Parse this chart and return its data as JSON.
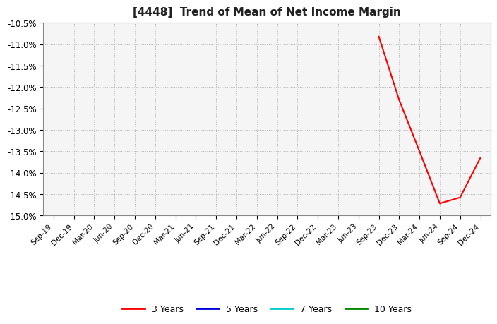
{
  "title": "[4448]  Trend of Mean of Net Income Margin",
  "x_labels": [
    "Sep-19",
    "Dec-19",
    "Mar-20",
    "Jun-20",
    "Sep-20",
    "Dec-20",
    "Mar-21",
    "Jun-21",
    "Sep-21",
    "Dec-21",
    "Mar-22",
    "Jun-22",
    "Sep-22",
    "Dec-22",
    "Mar-23",
    "Jun-23",
    "Sep-23",
    "Dec-23",
    "Mar-24",
    "Jun-24",
    "Sep-24",
    "Dec-24"
  ],
  "series_3y": {
    "name": "3 Years",
    "color": "#ff0000",
    "data_indices": [
      16,
      17,
      18,
      19,
      20,
      21
    ],
    "data_values": [
      -10.82,
      -12.3,
      -13.5,
      -14.72,
      -14.58,
      -13.65
    ]
  },
  "series_5y": {
    "name": "5 Years",
    "color": "#0000dd",
    "data_indices": [],
    "data_values": []
  },
  "series_7y": {
    "name": "7 Years",
    "color": "#00cccc",
    "data_indices": [],
    "data_values": []
  },
  "series_10y": {
    "name": "10 Years",
    "color": "#008800",
    "data_indices": [],
    "data_values": []
  },
  "ylim": [
    -15.0,
    -10.5
  ],
  "yticks": [
    -15.0,
    -14.5,
    -14.0,
    -13.5,
    -13.0,
    -12.5,
    -12.0,
    -11.5,
    -11.0,
    -10.5
  ],
  "background_color": "#ffffff",
  "plot_bg_color": "#f5f5f5",
  "grid_color": "#aaaaaa",
  "legend_colors": [
    "#ff0000",
    "#0000dd",
    "#00cccc",
    "#008800"
  ],
  "legend_labels": [
    "3 Years",
    "5 Years",
    "7 Years",
    "10 Years"
  ]
}
